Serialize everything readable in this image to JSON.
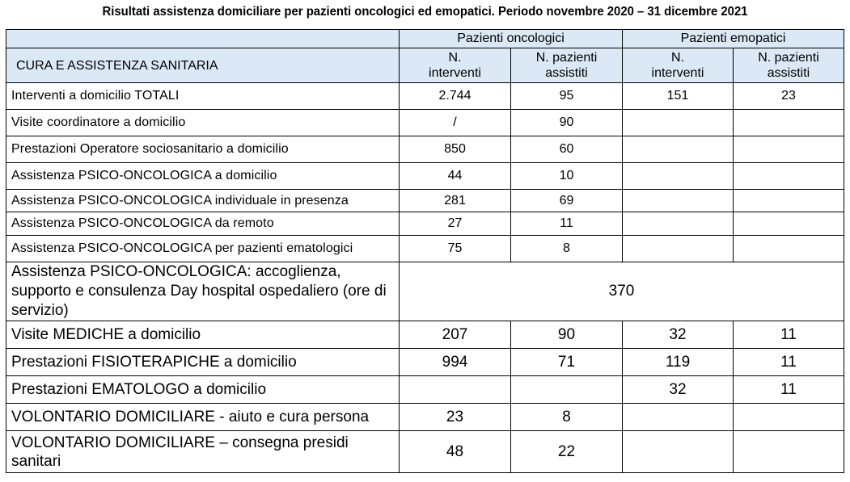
{
  "title": "Risultati assistenza domiciliare per pazienti oncologici ed emopatici. Periodo novembre 2020 – 31 dicembre 2021",
  "header": {
    "group_onco": "Pazienti oncologici",
    "group_emo": "Pazienti emopatici",
    "col_label": "CURA E ASSISTENZA SANITARIA",
    "col_interventi_line1": "N.",
    "col_interventi_line2": "interventi",
    "col_assistiti_line1": "N. pazienti",
    "col_assistiti_line2": "assistiti"
  },
  "rows": [
    {
      "label": "Interventi a domicilio TOTALI",
      "onco_interventi": "2.744",
      "onco_assistiti": "95",
      "emo_interventi": "151",
      "emo_assistiti": "23"
    },
    {
      "label": "Visite coordinatore a domicilio",
      "onco_interventi": "/",
      "onco_assistiti": "90",
      "emo_interventi": "",
      "emo_assistiti": ""
    },
    {
      "label": "Prestazioni Operatore sociosanitario a domicilio",
      "onco_interventi": "850",
      "onco_assistiti": "60",
      "emo_interventi": "",
      "emo_assistiti": ""
    },
    {
      "label": "Assistenza PSICO-ONCOLOGICA a domicilio",
      "onco_interventi": "44",
      "onco_assistiti": "10",
      "emo_interventi": "",
      "emo_assistiti": ""
    },
    {
      "label": "Assistenza PSICO-ONCOLOGICA individuale in presenza",
      "onco_interventi": "281",
      "onco_assistiti": "69",
      "emo_interventi": "",
      "emo_assistiti": ""
    },
    {
      "label": "Assistenza PSICO-ONCOLOGICA da remoto",
      "onco_interventi": "27",
      "onco_assistiti": "11",
      "emo_interventi": "",
      "emo_assistiti": ""
    },
    {
      "label": "Assistenza PSICO-ONCOLOGICA per pazienti ematologici",
      "onco_interventi": "75",
      "onco_assistiti": "8",
      "emo_interventi": "",
      "emo_assistiti": ""
    },
    {
      "label": "Assistenza PSICO-ONCOLOGICA: accoglienza, supporto e consulenza Day hospital ospedaliero (ore di servizio)",
      "merged_value": "370"
    },
    {
      "label": "Visite MEDICHE a domicilio",
      "onco_interventi": "207",
      "onco_assistiti": "90",
      "emo_interventi": "32",
      "emo_assistiti": "11"
    },
    {
      "label": "Prestazioni FISIOTERAPICHE a domicilio",
      "onco_interventi": "994",
      "onco_assistiti": "71",
      "emo_interventi": "119",
      "emo_assistiti": "11"
    },
    {
      "label": "Prestazioni EMATOLOGO a domicilio",
      "onco_interventi": "",
      "onco_assistiti": "",
      "emo_interventi": "32",
      "emo_assistiti": "11"
    },
    {
      "label": "VOLONTARIO DOMICILIARE - aiuto e cura persona",
      "onco_interventi": "23",
      "onco_assistiti": "8",
      "emo_interventi": "",
      "emo_assistiti": ""
    },
    {
      "label": "VOLONTARIO DOMICILIARE – consegna presidi sanitari",
      "onco_interventi": "48",
      "onco_assistiti": "22",
      "emo_interventi": "",
      "emo_assistiti": ""
    }
  ]
}
